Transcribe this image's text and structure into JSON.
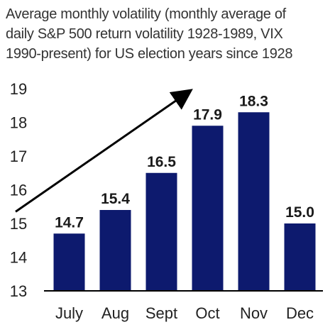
{
  "title_lines": [
    "Average monthly volatility (monthly average of",
    "daily S&P 500 return volatility 1928-1989, VIX",
    "1990-present) for US election years since 1928"
  ],
  "chart_data": {
    "type": "bar",
    "title": "Average monthly volatility (monthly average of daily S&P 500 return volatility 1928-1989, VIX 1990-present) for US election years since 1928",
    "categories": [
      "July",
      "Aug",
      "Sept",
      "Oct",
      "Nov",
      "Dec"
    ],
    "values": [
      14.7,
      15.4,
      16.5,
      17.9,
      18.3,
      15.0
    ],
    "data_labels": [
      "14.7",
      "15.4",
      "16.5",
      "17.9",
      "18.3",
      "15.0"
    ],
    "ylim": [
      13,
      19
    ],
    "yticks": [
      13,
      14,
      15,
      16,
      17,
      18,
      19
    ],
    "xlabel": "",
    "ylabel": "",
    "grid": false,
    "bar_color": "#0d1a6e",
    "annotation": "upward-trend-arrow"
  }
}
